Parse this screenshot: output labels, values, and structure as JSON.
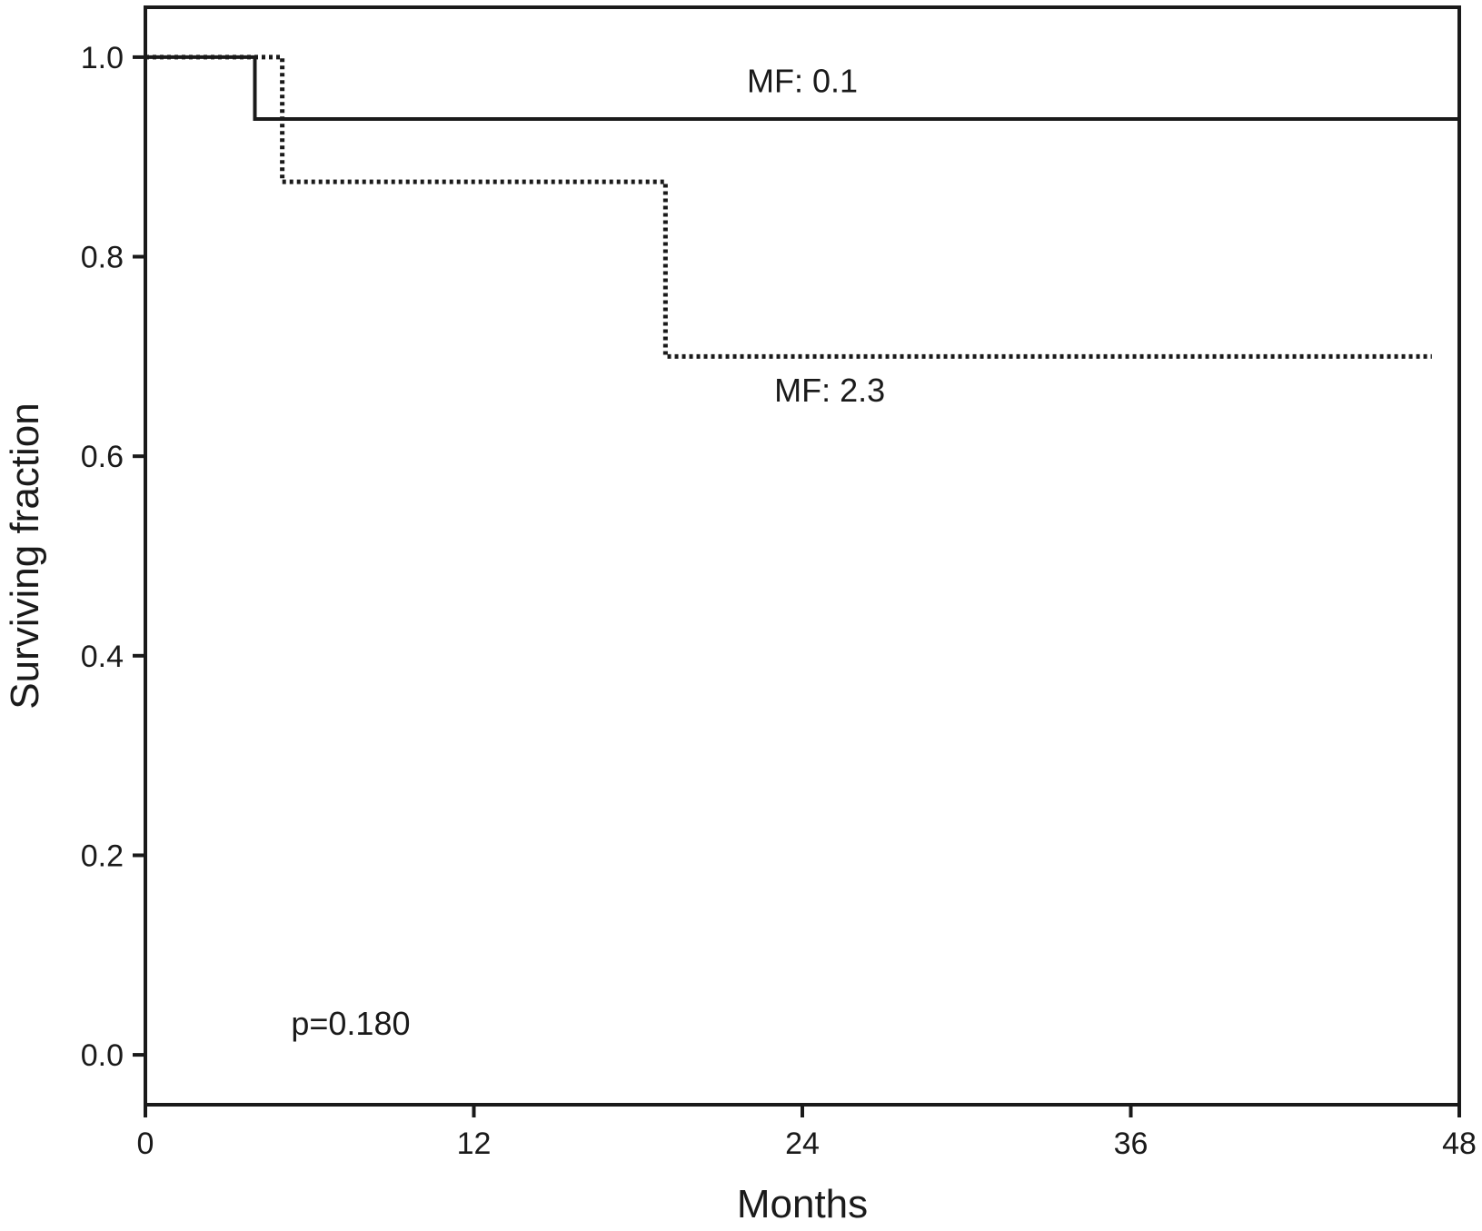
{
  "chart_data": {
    "type": "line",
    "subtype": "step",
    "title": "",
    "xlabel": "Months",
    "ylabel": "Surviving fraction",
    "xlim": [
      0,
      48
    ],
    "ylim": [
      -0.05,
      1.05
    ],
    "xticks": [
      0,
      12,
      24,
      36,
      48
    ],
    "xtick_labels": [
      "0",
      "12",
      "24",
      "36",
      "48"
    ],
    "yticks": [
      0.0,
      0.2,
      0.4,
      0.6,
      0.8,
      1.0
    ],
    "ytick_labels": [
      "0.0",
      "0.2",
      "0.4",
      "0.6",
      "0.8",
      "1.0"
    ],
    "grid": false,
    "legend": "none",
    "series": [
      {
        "label": "MF: 0.1",
        "style": "solid",
        "color": "#1a1a1a",
        "x": [
          0,
          4,
          4,
          48
        ],
        "y": [
          1.0,
          1.0,
          0.938,
          0.938
        ]
      },
      {
        "label": "MF: 2.3",
        "style": "dotted",
        "color": "#1a1a1a",
        "x": [
          0,
          5,
          5,
          19,
          19,
          47
        ],
        "y": [
          1.0,
          1.0,
          0.875,
          0.875,
          0.7,
          0.7
        ]
      }
    ],
    "annotations": [
      {
        "text": "MF: 0.1",
        "x": 24,
        "y": 0.965
      },
      {
        "text": "MF: 2.3",
        "x": 25,
        "y": 0.655
      },
      {
        "text": "p=0.180",
        "x": 7.5,
        "y": 0.02
      }
    ]
  }
}
